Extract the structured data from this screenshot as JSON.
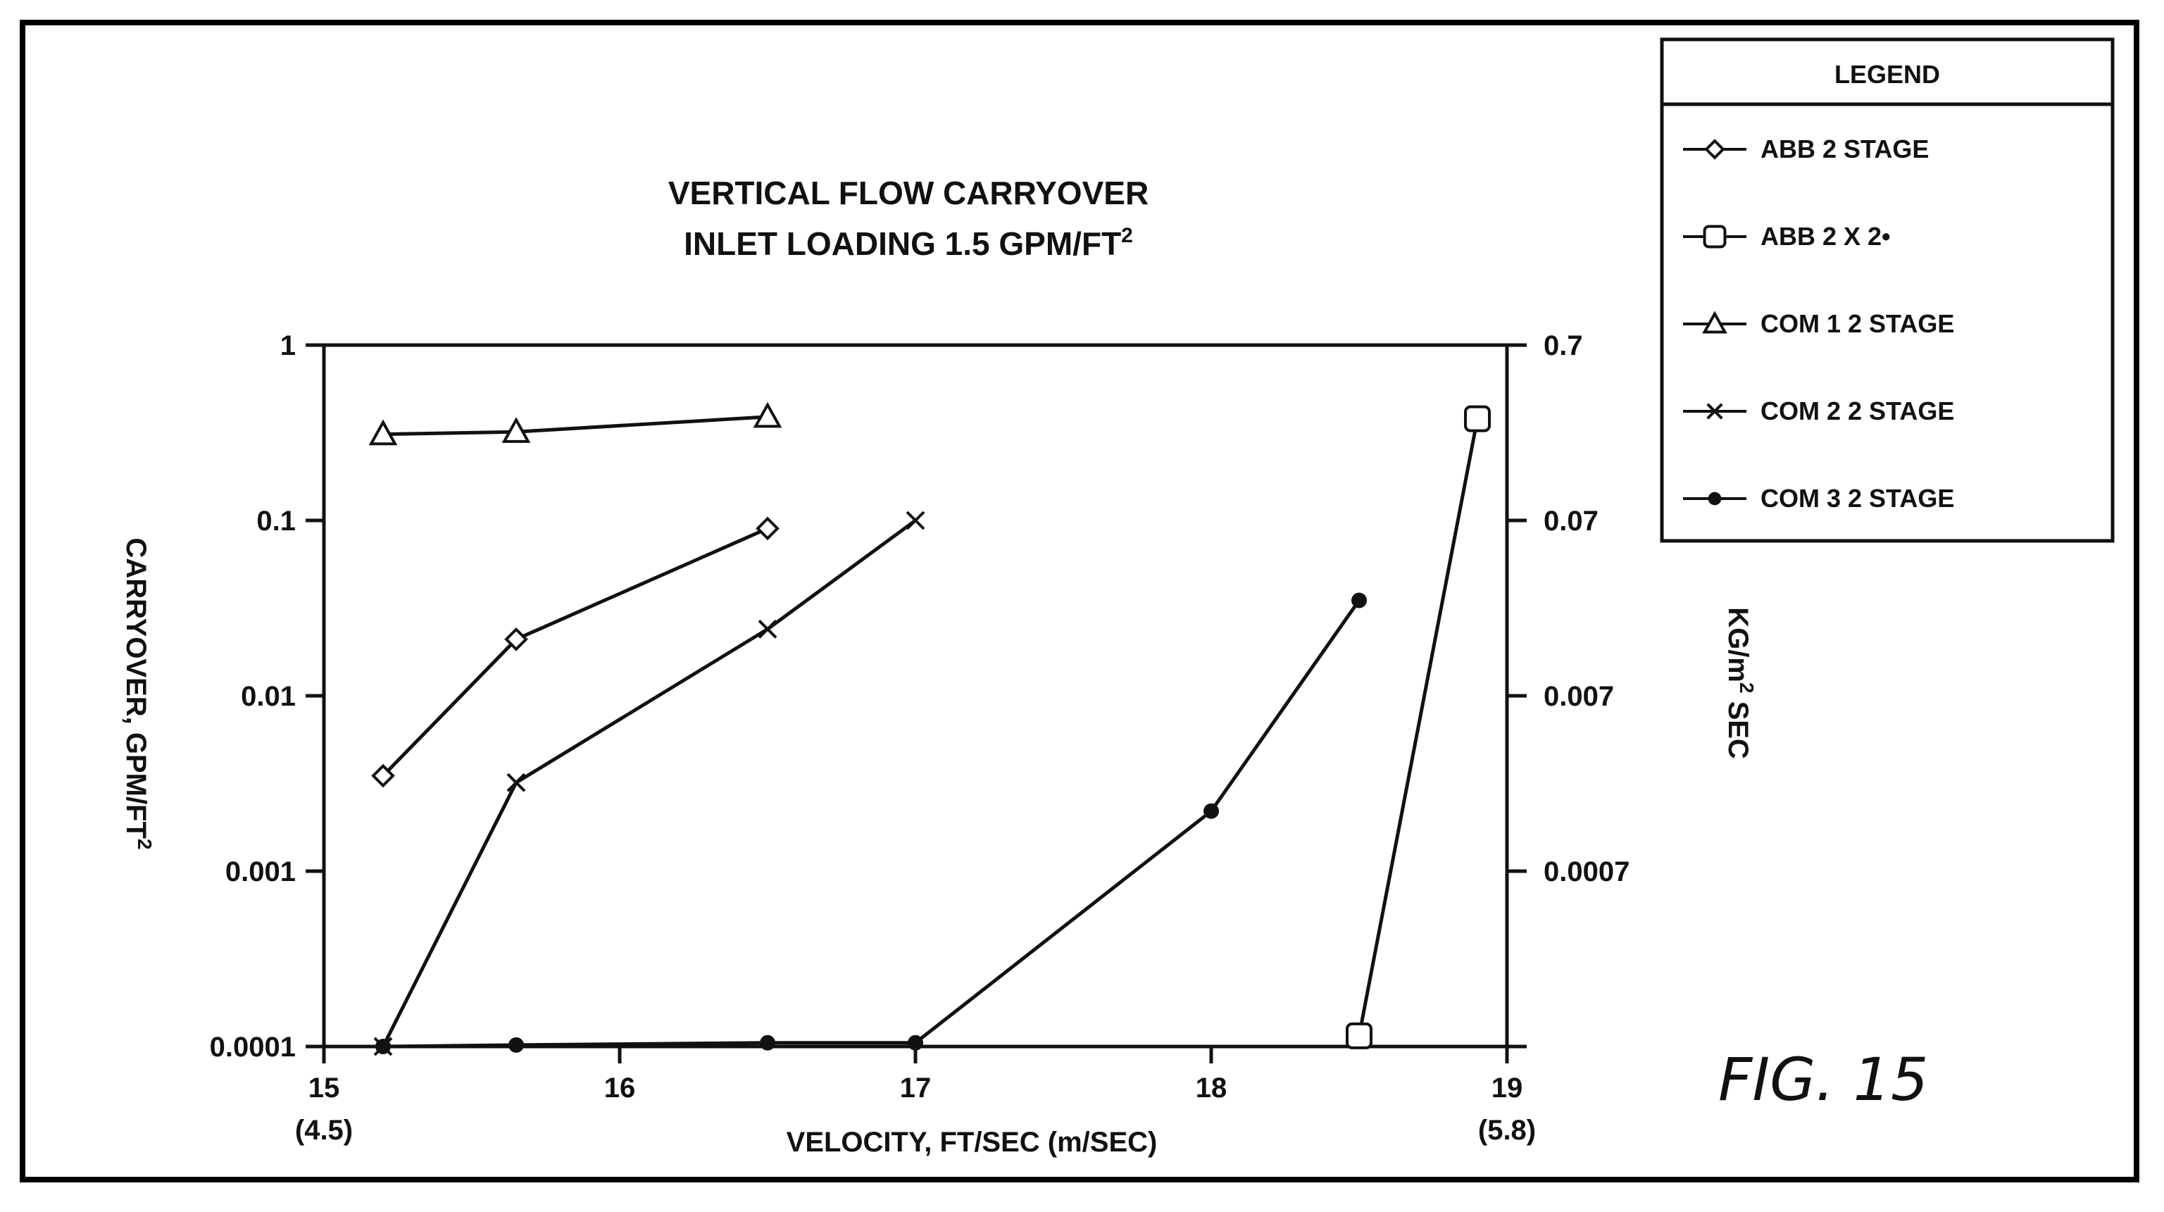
{
  "chart_data": {
    "type": "line",
    "title": "VERTICAL FLOW CARRYOVER",
    "subtitle": "INLET LOADING 1.5 GPM/FT",
    "subtitle_sup": "2",
    "xlabel": "VELOCITY,  FT/SEC (m/SEC)",
    "ylabel": "CARRYOVER, GPM/FT",
    "ylabel_sup": "2",
    "y2label": "KG/m",
    "y2label_sup": "2",
    "y2label_suffix": " SEC",
    "xlim": [
      15,
      19
    ],
    "ylim": [
      0.0001,
      1
    ],
    "yscale": "log",
    "x_ticks": [
      {
        "value": 15,
        "label": "15",
        "sub": "(4.5)"
      },
      {
        "value": 16,
        "label": "16",
        "sub": ""
      },
      {
        "value": 17,
        "label": "17",
        "sub": ""
      },
      {
        "value": 18,
        "label": "18",
        "sub": ""
      },
      {
        "value": 19,
        "label": "19",
        "sub": "(5.8)"
      }
    ],
    "y_ticks": [
      {
        "value": 1,
        "label": "1"
      },
      {
        "value": 0.1,
        "label": "0.1"
      },
      {
        "value": 0.01,
        "label": "0.01"
      },
      {
        "value": 0.001,
        "label": "0.001"
      },
      {
        "value": 0.0001,
        "label": "0.0001"
      }
    ],
    "y2_ticks": [
      {
        "value": 1,
        "label": "0.7"
      },
      {
        "value": 0.1,
        "label": "0.07"
      },
      {
        "value": 0.01,
        "label": "0.007"
      },
      {
        "value": 0.001,
        "label": "0.0007"
      }
    ],
    "grid": false,
    "legend_title": "LEGEND",
    "legend_position": "top-right",
    "series": [
      {
        "name": "ABB 2 STAGE",
        "marker": "diamond",
        "x": [
          15.2,
          15.65,
          16.5
        ],
        "y": [
          0.0035,
          0.021,
          0.09
        ]
      },
      {
        "name": "ABB 2 X 2•",
        "marker": "square",
        "x": [
          18.5,
          18.9
        ],
        "y": [
          0.000115,
          0.38
        ]
      },
      {
        "name": "COM 1  2 STAGE",
        "marker": "triangle",
        "x": [
          15.2,
          15.65,
          16.5
        ],
        "y": [
          0.31,
          0.32,
          0.39
        ]
      },
      {
        "name": "COM 2  2 STAGE",
        "marker": "x",
        "x": [
          15.2,
          15.65,
          16.5,
          17.0
        ],
        "y": [
          0.0001,
          0.0032,
          0.024,
          0.1
        ]
      },
      {
        "name": "COM 3  2 STAGE",
        "marker": "dot",
        "x": [
          15.2,
          15.65,
          16.5,
          17.0,
          18.0,
          18.5
        ],
        "y": [
          0.0001,
          0.000102,
          0.000105,
          0.000105,
          0.0022,
          0.035
        ]
      }
    ],
    "annotation": "FIG. 15"
  }
}
